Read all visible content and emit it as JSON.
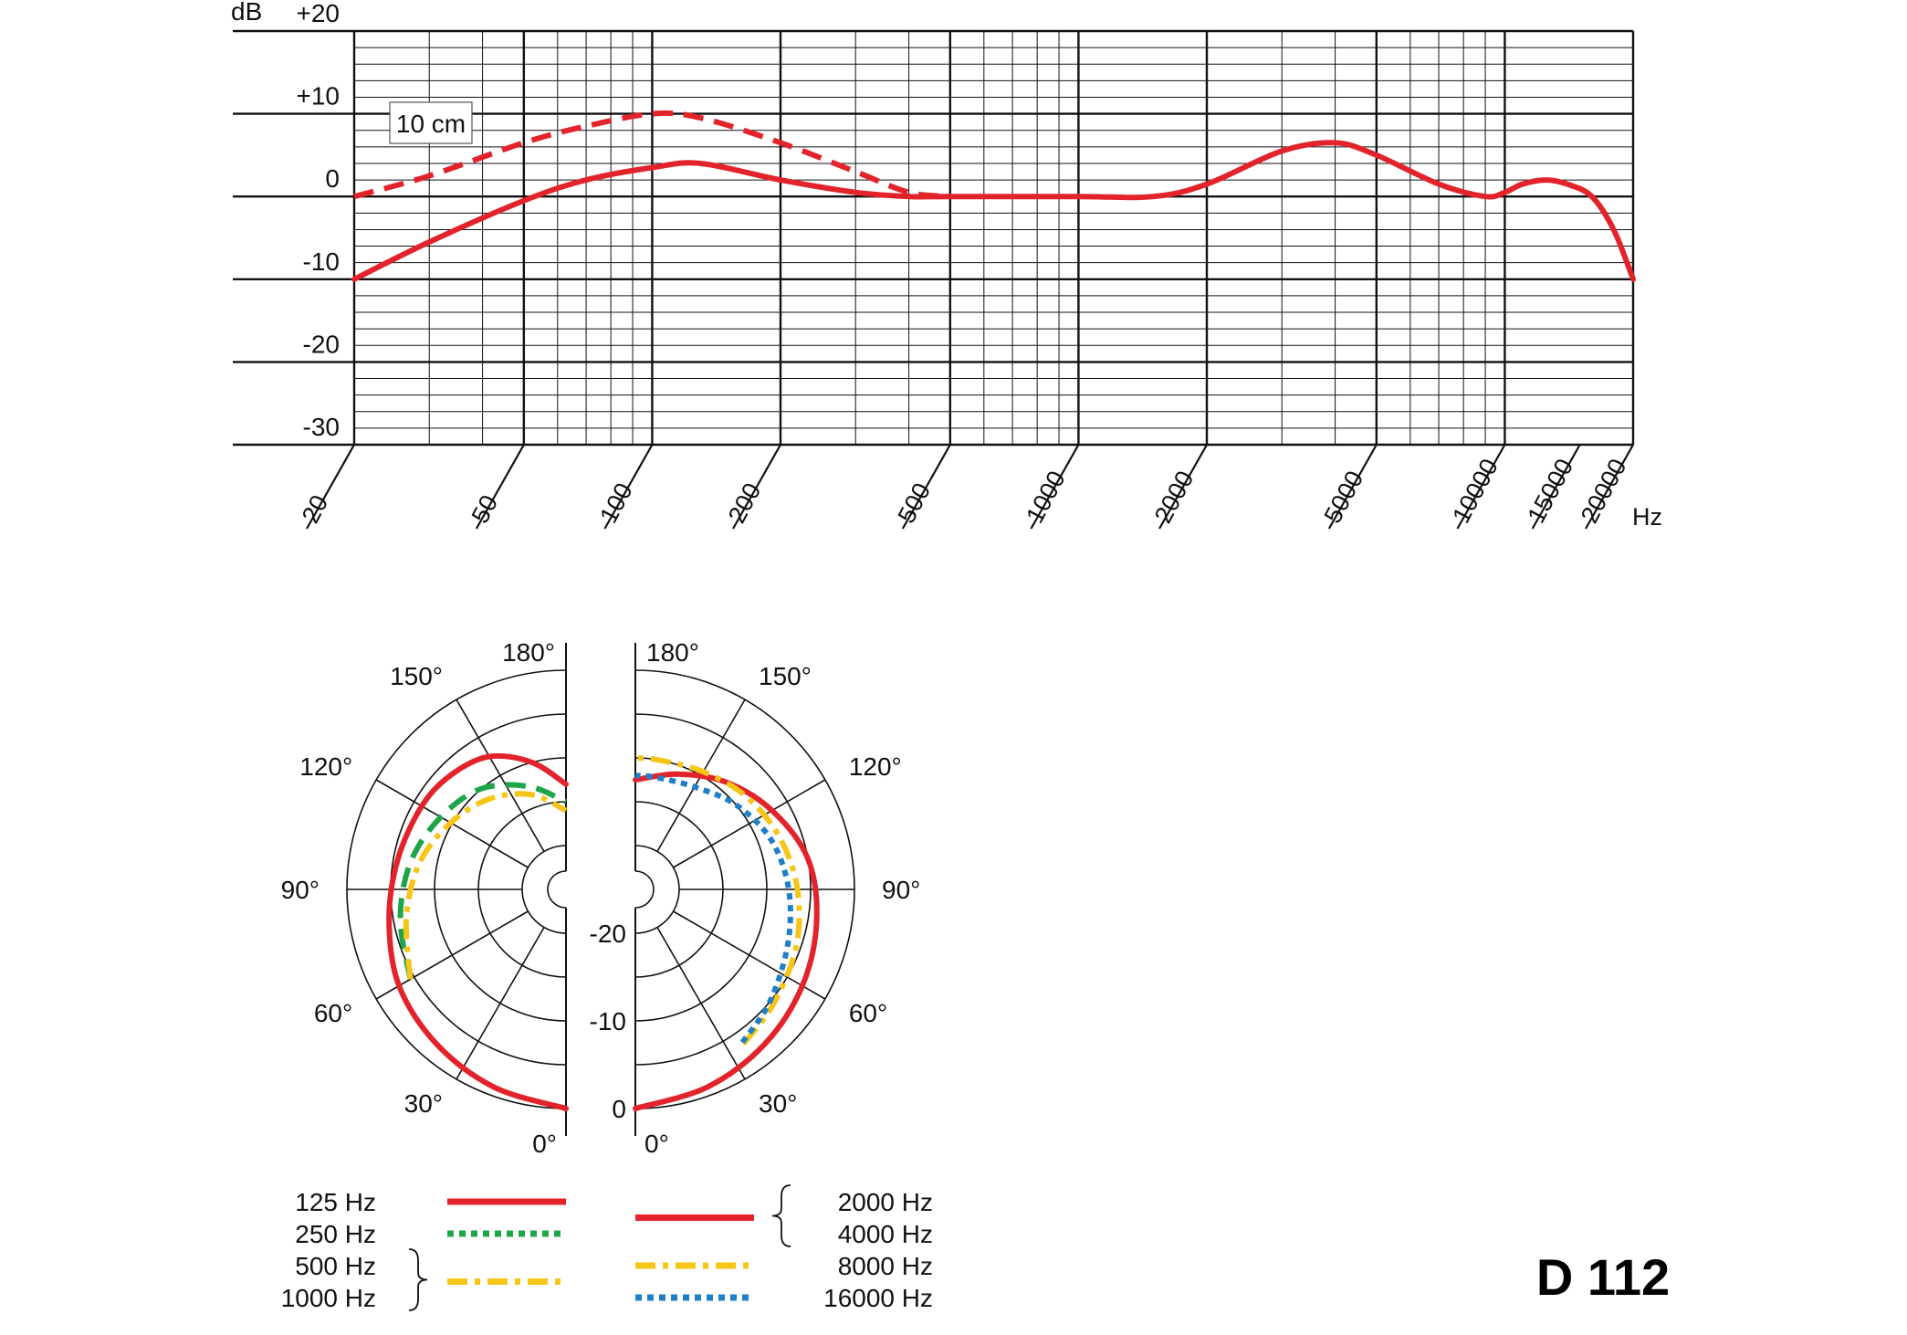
{
  "title": "D 112",
  "colors": {
    "red": "#e3232b",
    "green": "#1ea54a",
    "yellow": "#f5c518",
    "blue": "#1f7fc6",
    "grid": "#111111"
  },
  "chart_data": [
    {
      "type": "line",
      "name": "frequency-response",
      "y_unit_label": "dB",
      "x_unit_label": "Hz",
      "x_scale": "log",
      "xlim": [
        20,
        20000
      ],
      "ylim": [
        -30,
        20
      ],
      "y_ticks": [
        "+20",
        "+10",
        "0",
        "-10",
        "-20",
        "-30"
      ],
      "y_tick_values": [
        20,
        10,
        0,
        -10,
        -20,
        -30
      ],
      "x_ticks": [
        "20",
        "50",
        "100",
        "200",
        "500",
        "1000",
        "2000",
        "5000",
        "10000",
        "15000",
        "20000"
      ],
      "x_tick_values": [
        20,
        50,
        100,
        200,
        500,
        1000,
        2000,
        5000,
        10000,
        15000,
        20000
      ],
      "annotation": "10 cm",
      "series": [
        {
          "style": "solid",
          "points": [
            [
              20,
              -10
            ],
            [
              30,
              -5.5
            ],
            [
              50,
              -0.5
            ],
            [
              70,
              2
            ],
            [
              100,
              3.5
            ],
            [
              130,
              4
            ],
            [
              200,
              2
            ],
            [
              300,
              0.5
            ],
            [
              400,
              0
            ],
            [
              500,
              0
            ],
            [
              1000,
              0
            ],
            [
              1500,
              0
            ],
            [
              2000,
              1.5
            ],
            [
              3000,
              5.5
            ],
            [
              4000,
              6.5
            ],
            [
              5000,
              5
            ],
            [
              7000,
              1.5
            ],
            [
              9000,
              0
            ],
            [
              10000,
              0.5
            ],
            [
              11000,
              1.5
            ],
            [
              12500,
              2
            ],
            [
              14000,
              1.5
            ],
            [
              16000,
              0
            ],
            [
              18000,
              -4
            ],
            [
              20000,
              -10
            ]
          ]
        },
        {
          "style": "dashed",
          "points": [
            [
              20,
              0
            ],
            [
              30,
              2.5
            ],
            [
              50,
              6.5
            ],
            [
              70,
              8.5
            ],
            [
              100,
              10
            ],
            [
              130,
              9.5
            ],
            [
              200,
              6.5
            ],
            [
              300,
              3
            ],
            [
              400,
              0.5
            ],
            [
              500,
              0
            ]
          ]
        }
      ]
    },
    {
      "type": "polar",
      "name": "polar-pattern",
      "angle_labels_left": [
        "180°",
        "150°",
        "120°",
        "90°",
        "60°",
        "30°",
        "0°"
      ],
      "angle_labels_right": [
        "180°",
        "150°",
        "120°",
        "90°",
        "60°",
        "30°",
        "0°"
      ],
      "radial_labels": [
        "-20",
        "-10",
        "0"
      ],
      "rlim_db": [
        -25,
        0
      ],
      "legend_left": [
        {
          "label": "125 Hz",
          "style": "solid",
          "color": "red"
        },
        {
          "label": "250 Hz",
          "style": "dotted",
          "color": "green"
        },
        {
          "label": "500 Hz",
          "style": "dashdot",
          "color": "yellow",
          "group": 1
        },
        {
          "label": "1000 Hz",
          "group": 1
        }
      ],
      "legend_right": [
        {
          "label": "2000 Hz",
          "style": "solid",
          "color": "red",
          "group": 1
        },
        {
          "label": "4000 Hz",
          "group": 1
        },
        {
          "label": "8000 Hz",
          "style": "dashdot",
          "color": "yellow"
        },
        {
          "label": "16000 Hz",
          "style": "dotted",
          "color": "blue"
        }
      ],
      "series_left": [
        {
          "color": "red",
          "style": "solid",
          "points_deg_db": [
            [
              0,
              0
            ],
            [
              20,
              -1
            ],
            [
              40,
              -2
            ],
            [
              60,
              -3
            ],
            [
              80,
              -4.5
            ],
            [
              100,
              -5.5
            ],
            [
              120,
              -6
            ],
            [
              135,
              -6.5
            ],
            [
              150,
              -7.5
            ],
            [
              165,
              -10
            ],
            [
              180,
              -13
            ]
          ]
        },
        {
          "color": "green",
          "style": "dashed",
          "points_deg_db": [
            [
              60,
              -4.5
            ],
            [
              80,
              -5.8
            ],
            [
              100,
              -7
            ],
            [
              120,
              -8.5
            ],
            [
              140,
              -10
            ],
            [
              160,
              -12.5
            ],
            [
              180,
              -15
            ]
          ]
        },
        {
          "color": "yellow",
          "style": "dashdot",
          "points_deg_db": [
            [
              60,
              -4.5
            ],
            [
              80,
              -6.5
            ],
            [
              100,
              -8
            ],
            [
              120,
              -9.8
            ],
            [
              140,
              -11.5
            ],
            [
              160,
              -13.5
            ],
            [
              180,
              -16
            ]
          ]
        }
      ],
      "series_right": [
        {
          "color": "red",
          "style": "solid",
          "points_deg_db": [
            [
              0,
              0
            ],
            [
              20,
              -1
            ],
            [
              40,
              -2
            ],
            [
              60,
              -3
            ],
            [
              80,
              -4
            ],
            [
              100,
              -5
            ],
            [
              120,
              -7
            ],
            [
              140,
              -9
            ],
            [
              160,
              -11
            ],
            [
              180,
              -12.5
            ]
          ]
        },
        {
          "color": "yellow",
          "style": "dashdot",
          "points_deg_db": [
            [
              35,
              -3.5
            ],
            [
              50,
              -4.5
            ],
            [
              70,
              -5.5
            ],
            [
              90,
              -6.5
            ],
            [
              110,
              -7.5
            ],
            [
              130,
              -8.5
            ],
            [
              150,
              -9.5
            ],
            [
              170,
              -10
            ],
            [
              180,
              -10
            ]
          ]
        },
        {
          "color": "blue",
          "style": "dotted",
          "points_deg_db": [
            [
              35,
              -3.7
            ],
            [
              50,
              -5
            ],
            [
              70,
              -6.5
            ],
            [
              90,
              -7.5
            ],
            [
              110,
              -8.5
            ],
            [
              130,
              -10
            ],
            [
              150,
              -11.5
            ],
            [
              170,
              -12
            ],
            [
              180,
              -12
            ]
          ]
        }
      ]
    }
  ]
}
